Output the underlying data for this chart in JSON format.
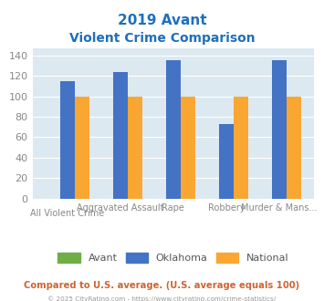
{
  "title_line1": "2019 Avant",
  "title_line2": "Violent Crime Comparison",
  "group_labels": [
    "All Violent Crime",
    "Aggravated Assault",
    "Rape",
    "Robbery",
    "Murder & Mans..."
  ],
  "avant_values": [
    0,
    0,
    0,
    0,
    0
  ],
  "oklahoma_values": [
    115,
    124,
    135,
    73,
    135
  ],
  "national_values": [
    100,
    100,
    100,
    100,
    100
  ],
  "bar_width": 0.28,
  "group_positions": [
    0,
    1,
    2,
    3,
    4
  ],
  "oklahoma_color": "#4472c4",
  "national_color": "#faa632",
  "avant_color": "#70ad47",
  "background_color": "#dce9f0",
  "title_color": "#1f6fbd",
  "tick_label_color": "#888888",
  "legend_label_color": "#555555",
  "footnote_color": "#cc6633",
  "copyright_color": "#999999",
  "ylim": [
    0,
    147
  ],
  "yticks": [
    0,
    20,
    40,
    60,
    80,
    100,
    120,
    140
  ],
  "footnote": "Compared to U.S. average. (U.S. average equals 100)",
  "copyright": "© 2025 CityRating.com - https://www.cityrating.com/crime-statistics/",
  "tick_top_labels": [
    "",
    "Aggravated Assault",
    "Rape",
    "Robbery",
    "Murder & Mans..."
  ],
  "tick_bottom_labels": [
    "All Violent Crime",
    "",
    "",
    "",
    ""
  ]
}
